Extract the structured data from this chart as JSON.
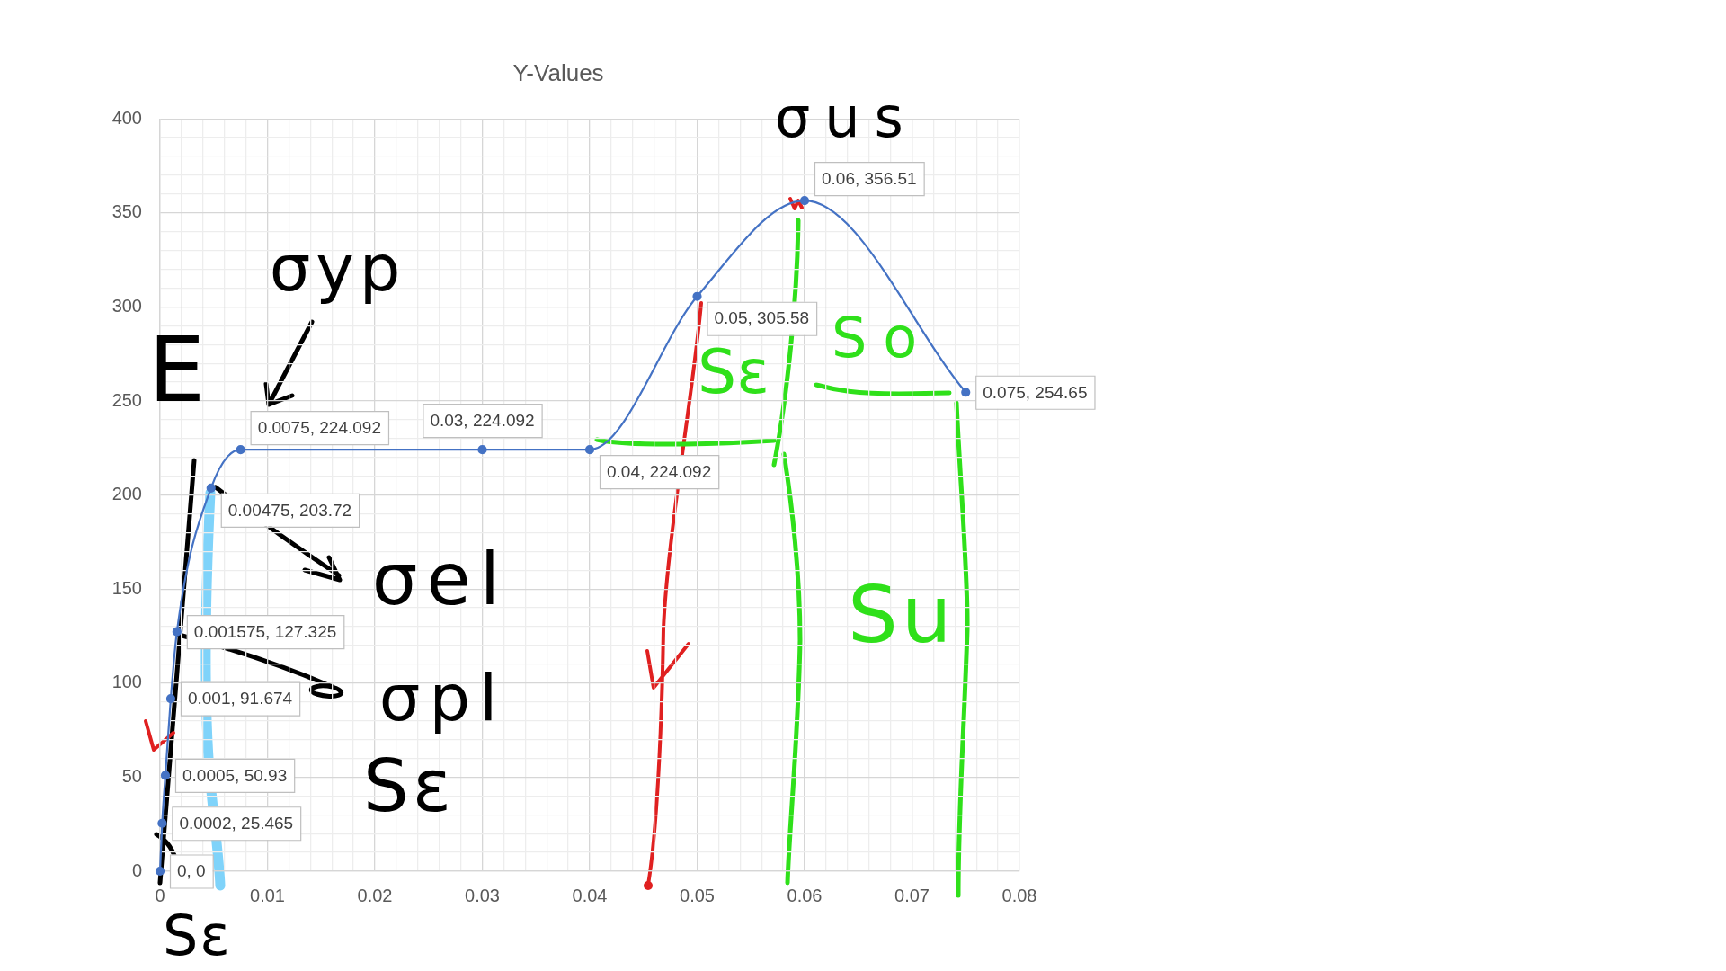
{
  "chart_data": {
    "type": "line",
    "title": "Y-Values",
    "x": [
      0,
      0.0002,
      0.0005,
      0.001,
      0.001575,
      0.00475,
      0.0075,
      0.03,
      0.04,
      0.05,
      0.06,
      0.075
    ],
    "values": [
      0,
      25.465,
      50.93,
      91.674,
      127.325,
      203.72,
      224.092,
      224.092,
      224.092,
      305.58,
      356.51,
      254.65
    ],
    "color": "#4472c4",
    "value_labels": [
      "0, 0",
      "0.0002, 25.465",
      "0.0005, 50.93",
      "0.001, 91.674",
      "0.001575, 127.325",
      "0.00475, 203.72",
      "0.0075, 224.092",
      "0.03, 224.092",
      "0.04, 224.092",
      "0.05, 305.58",
      "0.06, 356.51",
      "0.075, 254.65"
    ],
    "xlim": [
      0,
      0.08
    ],
    "xticks": [
      0,
      {
        "value": 0.002,
        "label": null
      },
      {
        "value": 0.004,
        "label": null
      },
      {
        "value": 0.006,
        "label": null
      },
      {
        "value": 0.008,
        "label": null
      },
      0.01,
      {
        "value": 0.012,
        "label": null
      },
      {
        "value": 0.014,
        "label": null
      },
      {
        "value": 0.016,
        "label": null
      },
      {
        "value": 0.018,
        "label": null
      },
      0.02,
      {
        "value": 0.022,
        "label": null
      },
      {
        "value": 0.024,
        "label": null
      },
      {
        "value": 0.026,
        "label": null
      },
      {
        "value": 0.028,
        "label": null
      },
      0.03,
      {
        "value": 0.032,
        "label": null
      },
      {
        "value": 0.034,
        "label": null
      },
      {
        "value": 0.036,
        "label": null
      },
      {
        "value": 0.038,
        "label": null
      },
      0.04,
      {
        "value": 0.042,
        "label": null
      },
      {
        "value": 0.044,
        "label": null
      },
      {
        "value": 0.046,
        "label": null
      },
      {
        "value": 0.048,
        "label": null
      },
      0.05,
      {
        "value": 0.052,
        "label": null
      },
      {
        "value": 0.054,
        "label": null
      },
      {
        "value": 0.056,
        "label": null
      },
      {
        "value": 0.058,
        "label": null
      },
      0.06,
      {
        "value": 0.062,
        "label": null
      },
      {
        "value": 0.064,
        "label": null
      },
      {
        "value": 0.066,
        "label": null
      },
      {
        "value": 0.068,
        "label": null
      },
      0.07,
      {
        "value": 0.072,
        "label": null
      },
      {
        "value": 0.074,
        "label": null
      },
      {
        "value": 0.076,
        "label": null
      },
      {
        "value": 0.078,
        "label": null
      },
      0.08
    ],
    "ylim": [
      0,
      400
    ],
    "yticks": [
      0,
      {
        "value": 10,
        "label": null
      },
      {
        "value": 20,
        "label": null
      },
      {
        "value": 30,
        "label": null
      },
      {
        "value": 40,
        "label": null
      },
      50,
      {
        "value": 60,
        "label": null
      },
      {
        "value": 70,
        "label": null
      },
      {
        "value": 80,
        "label": null
      },
      {
        "value": 90,
        "label": null
      },
      100,
      {
        "value": 110,
        "label": null
      },
      {
        "value": 120,
        "label": null
      },
      {
        "value": 130,
        "label": null
      },
      {
        "value": 140,
        "label": null
      },
      150,
      {
        "value": 160,
        "label": null
      },
      {
        "value": 170,
        "label": null
      },
      {
        "value": 180,
        "label": null
      },
      {
        "value": 190,
        "label": null
      },
      200,
      {
        "value": 210,
        "label": null
      },
      {
        "value": 220,
        "label": null
      },
      {
        "value": 230,
        "label": null
      },
      {
        "value": 240,
        "label": null
      },
      250,
      {
        "value": 260,
        "label": null
      },
      {
        "value": 270,
        "label": null
      },
      {
        "value": 280,
        "label": null
      },
      {
        "value": 290,
        "label": null
      },
      300,
      {
        "value": 310,
        "label": null
      },
      {
        "value": 320,
        "label": null
      },
      {
        "value": 330,
        "label": null
      },
      {
        "value": 340,
        "label": null
      },
      350,
      {
        "value": 360,
        "label": null
      },
      {
        "value": 370,
        "label": null
      },
      {
        "value": 380,
        "label": null
      },
      {
        "value": 390,
        "label": null
      },
      400
    ],
    "grid": true,
    "marker": "circle",
    "annotations": [
      {
        "text": "σus",
        "x": 0.06,
        "y": 356.51
      },
      {
        "text": "σyp",
        "x": 0.0075,
        "y": 224.092
      },
      "E",
      {
        "text": "σel",
        "x": 0.00475,
        "y": 203.72
      },
      {
        "text": "σpl",
        "x": 0.001575,
        "y": 127.325
      },
      "Sε",
      "Sε",
      "Sε",
      "So",
      "Su"
    ]
  }
}
